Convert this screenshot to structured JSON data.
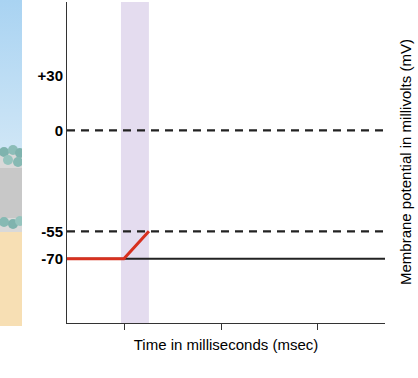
{
  "chart_data": {
    "type": "line",
    "x_label": "Time in milliseconds (msec)",
    "y_label": "Membrane potential in millivolts (mV)",
    "x": [
      0.4,
      0.99,
      1.25
    ],
    "series": [
      {
        "name": "membrane potential",
        "color": "#d7301f",
        "values": [
          -70,
          -70,
          -55
        ]
      }
    ],
    "xlim": [
      0.4,
      3.7
    ],
    "xticks": [
      1,
      2,
      3
    ],
    "ylim": [
      -105,
      70
    ],
    "yticks": [
      {
        "value": 30,
        "label": "+30"
      },
      0,
      -55,
      -70
    ],
    "tick_labels": "y",
    "grid": false,
    "reference_lines": [
      {
        "y": 0,
        "line_style": "dashed"
      },
      {
        "y": -55,
        "line_style": "dashed"
      },
      {
        "y": -70,
        "line_style": "solid"
      }
    ],
    "shaded_region": {
      "x0": 0.96,
      "x1": 1.25,
      "color": "#e4dcef"
    }
  }
}
